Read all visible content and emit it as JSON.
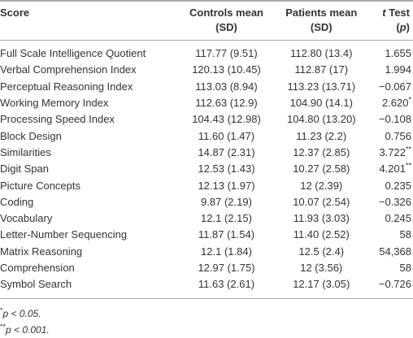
{
  "table": {
    "header": [
      [
        "Score"
      ],
      [
        "Controls mean",
        "(SD)"
      ],
      [
        "Patients mean",
        "(SD)"
      ],
      [
        {
          "i": "t",
          "t": " Test"
        },
        {
          "pre": "(",
          "i": "p",
          "post": ")"
        }
      ]
    ],
    "rows": [
      [
        "Full Scale Intelligence Quotient",
        "117.77 (9.51)",
        "112.80 (13.4)",
        {
          "v": "1.655"
        }
      ],
      [
        "Verbal Comprehension Index",
        "120.13 (10.45)",
        "112.87 (17)",
        {
          "v": "1.994"
        }
      ],
      [
        "Perceptual Reasoning Index",
        "113.03 (8.94)",
        "113.23 (13.71)",
        {
          "v": "−0.067"
        }
      ],
      [
        "Working Memory Index",
        "112.63 (12.9)",
        "104.90 (14.1)",
        {
          "v": "2.620",
          "s": "*"
        }
      ],
      [
        "Processing Speed Index",
        "104.43 (12.98)",
        "104.80 (13.20)",
        {
          "v": "−0.108"
        }
      ],
      [
        "Block Design",
        "11.60 (1.47)",
        "11.23 (2.2)",
        {
          "v": "0.756"
        }
      ],
      [
        "Similarities",
        "14.87 (2.31)",
        "12.37 (2.85)",
        {
          "v": "3.722",
          "s": "**"
        }
      ],
      [
        "Digit Span",
        "12.53 (1.43)",
        "10.27 (2.58)",
        {
          "v": "4.201",
          "s": "**"
        }
      ],
      [
        "Picture Concepts",
        "12.13 (1.97)",
        "12 (2.39)",
        {
          "v": "0.235"
        }
      ],
      [
        "Coding",
        "9.87 (2.19)",
        "10.07 (2.54)",
        {
          "v": "−0.326"
        }
      ],
      [
        "Vocabulary",
        "12.1 (2.15)",
        "11.93 (3.03)",
        {
          "v": "0.245"
        }
      ],
      [
        "Letter-Number Sequencing",
        "11.87 (1.54)",
        "11.40 (2.52)",
        {
          "v": "58"
        }
      ],
      [
        "Matrix Reasoning",
        "12.1 (1.84)",
        "12.5 (2.4)",
        {
          "v": "54,368"
        }
      ],
      [
        "Comprehension",
        "12.97 (1.75)",
        "12 (3.56)",
        {
          "v": "58"
        }
      ],
      [
        "Symbol Search",
        "11.63 (2.61)",
        "12.17 (3.05)",
        {
          "v": "−0.726"
        }
      ]
    ]
  },
  "footnotes": [
    {
      "mark": "*",
      "text": "p < 0.05."
    },
    {
      "mark": "**",
      "text": "p < 0.001."
    }
  ]
}
